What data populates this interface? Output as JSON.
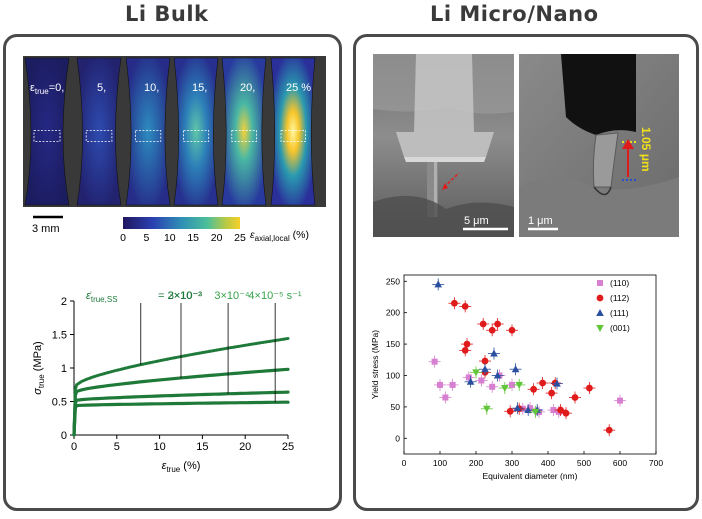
{
  "left_title": "Li Bulk",
  "right_title": "Li Micro/Nano",
  "specimen_image": {
    "strain_labels": [
      "εtrue=0,",
      "5,",
      "10,",
      "15,",
      "20,",
      "25 %"
    ],
    "label_prefix": "ε",
    "label_sub": "true",
    "label_suffix": "=0,",
    "other_labels": [
      "5,",
      "10,",
      "15,",
      "20,",
      "25 %"
    ],
    "scale_bar": "3 mm"
  },
  "colorbar": {
    "ticks": [
      "0",
      "5",
      "10",
      "15",
      "20",
      "25"
    ],
    "label_prefix": "ε",
    "label_sub": "axial,local",
    "label_suffix": " (%)"
  },
  "sem_images": {
    "left_scale": "5 μm",
    "right_scale": "1 μm",
    "right_measure": "1.05 μm"
  },
  "colors": {
    "green": "#1f7a3a",
    "light_green": "#36a04c",
    "red": "#e01b1b",
    "blue": "#2b4fa0",
    "pink": "#d77fd0",
    "lime": "#62c63a"
  },
  "chart_data": [
    {
      "type": "line",
      "title": "",
      "xlabel_prefix": "ε",
      "xlabel_sub": "true",
      "xlabel_suffix": " (%)",
      "ylabel_prefix": "σ",
      "ylabel_sub": "true",
      "ylabel_suffix": " (MPa)",
      "xlim": [
        0,
        25
      ],
      "ylim": [
        0,
        2
      ],
      "xticks": [
        "0",
        "5",
        "10",
        "15",
        "20",
        "25"
      ],
      "yticks": [
        "0",
        "0.5",
        "1",
        "1.5",
        "2"
      ],
      "annotation_prefix": "ε̇",
      "annotation_sub": "true,SS",
      "series": [
        {
          "name": "2×10⁻²",
          "label": " = 2×10⁻²",
          "yield": 0.75,
          "end": 1.44,
          "x_label_at": 7.8
        },
        {
          "name": "3×10⁻³",
          "label": "3×10⁻³",
          "yield": 0.65,
          "end": 0.98,
          "x_label_at": 12.5
        },
        {
          "name": "3×10⁻⁴",
          "label": "3×10⁻⁴",
          "yield": 0.52,
          "end": 0.64,
          "x_label_at": 18.0
        },
        {
          "name": "4×10⁻⁵ s⁻¹",
          "label": "4×10⁻⁵ s⁻¹",
          "yield": 0.44,
          "end": 0.49,
          "x_label_at": 23.5
        }
      ]
    },
    {
      "type": "scatter",
      "title": "",
      "xlabel": "Equivalent diameter (nm)",
      "ylabel": "Yield stress (MPa)",
      "xlim": [
        0,
        700
      ],
      "ylim": [
        -25,
        260
      ],
      "xticks": [
        "0",
        "100",
        "200",
        "300",
        "400",
        "500",
        "600",
        "700"
      ],
      "yticks": [
        "0",
        "50",
        "100",
        "150",
        "200",
        "250"
      ],
      "series": [
        {
          "name": "(110)",
          "points": [
            [
              85,
              122
            ],
            [
              100,
              85
            ],
            [
              115,
              65
            ],
            [
              135,
              85
            ],
            [
              180,
              97
            ],
            [
              215,
              92
            ],
            [
              245,
              82
            ],
            [
              265,
              100
            ],
            [
              300,
              85
            ],
            [
              330,
              47
            ],
            [
              350,
              48
            ],
            [
              375,
              42
            ],
            [
              415,
              45
            ],
            [
              430,
              42
            ],
            [
              600,
              60
            ]
          ]
        },
        {
          "name": "(112)",
          "points": [
            [
              140,
              215
            ],
            [
              170,
              210
            ],
            [
              175,
              150
            ],
            [
              170,
              140
            ],
            [
              220,
              182
            ],
            [
              245,
              172
            ],
            [
              260,
              182
            ],
            [
              300,
              172
            ],
            [
              225,
              123
            ],
            [
              225,
              105
            ],
            [
              295,
              43
            ],
            [
              320,
              47
            ],
            [
              360,
              78
            ],
            [
              385,
              88
            ],
            [
              410,
              72
            ],
            [
              420,
              88
            ],
            [
              435,
              45
            ],
            [
              450,
              40
            ],
            [
              475,
              65
            ],
            [
              515,
              80
            ],
            [
              570,
              13
            ]
          ]
        },
        {
          "name": "(111)",
          "points": [
            [
              95,
              245
            ],
            [
              185,
              90
            ],
            [
              225,
              110
            ],
            [
              250,
              135
            ],
            [
              260,
              100
            ],
            [
              310,
              110
            ],
            [
              315,
              48
            ],
            [
              345,
              45
            ],
            [
              370,
              45
            ],
            [
              425,
              87
            ]
          ]
        },
        {
          "name": "(001)",
          "points": [
            [
              200,
              105
            ],
            [
              230,
              47
            ],
            [
              280,
              80
            ],
            [
              320,
              85
            ],
            [
              365,
              42
            ]
          ]
        }
      ]
    }
  ]
}
